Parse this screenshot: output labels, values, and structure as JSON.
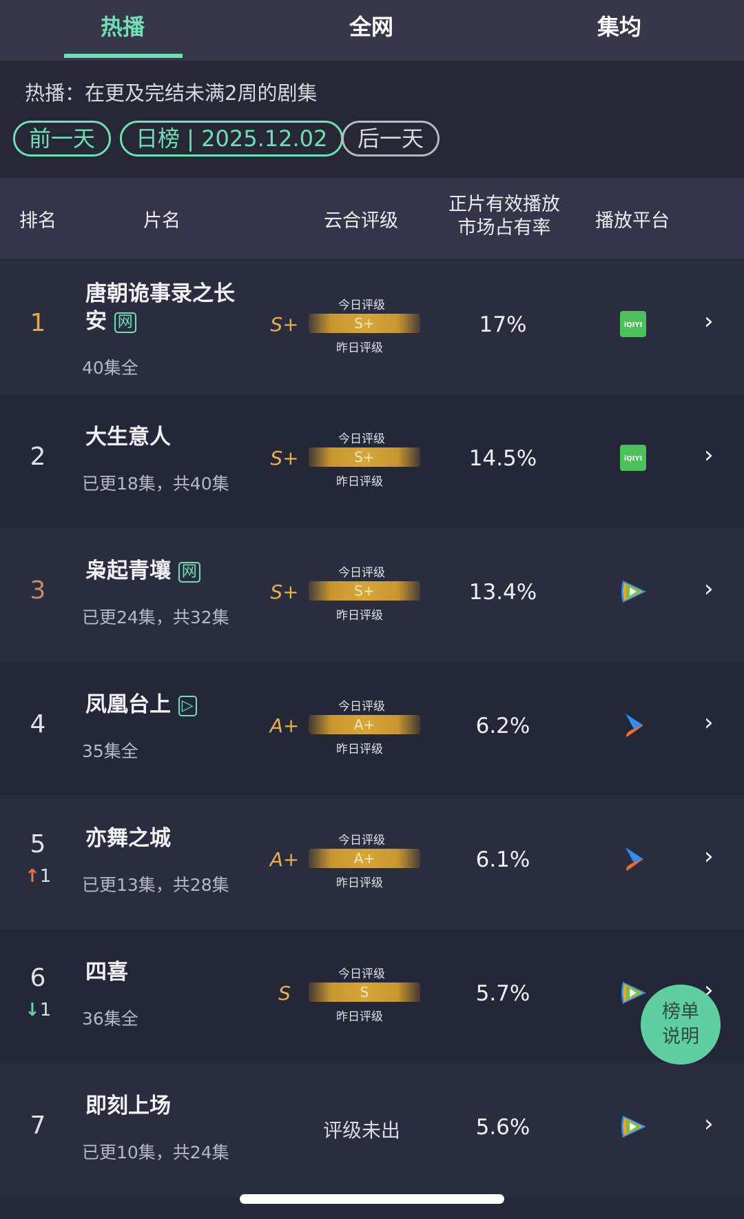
{
  "tabs": [
    {
      "label": "热播",
      "active": true
    },
    {
      "label": "全网",
      "active": false
    },
    {
      "label": "集均",
      "active": false
    }
  ],
  "description": "热播：在更及完结未满2周的剧集",
  "date_nav": {
    "prev": "前一天",
    "current": "日榜 | 2025.12.02",
    "next": "后一天"
  },
  "table_headers": {
    "rank": "排名",
    "title": "片名",
    "grade": "云合评级",
    "share": "正片有效播放\n市场占有率",
    "share_line1": "正片有效播放",
    "share_line2": "市场占有率",
    "platform": "播放平台"
  },
  "grade_labels": {
    "today": "今日评级",
    "yesterday": "昨日评级"
  },
  "rows": [
    {
      "rank": "1",
      "title": "唐朝诡事录之长安",
      "badge": "网",
      "status": "40集全",
      "grade": "S+",
      "bar_grade": "S+",
      "share": "17%",
      "platform": "iqiyi-icon",
      "change": ""
    },
    {
      "rank": "2",
      "title": "大生意人",
      "badge": "",
      "status": "已更18集，共40集",
      "grade": "S+",
      "bar_grade": "S+",
      "share": "14.5%",
      "platform": "iqiyi-icon",
      "change": ""
    },
    {
      "rank": "3",
      "title": "枭起青壤",
      "badge": "网",
      "status": "已更24集，共32集",
      "grade": "S+",
      "bar_grade": "S+",
      "share": "13.4%",
      "platform": "tencent-video-icon",
      "change": ""
    },
    {
      "rank": "4",
      "title": "凤凰台上",
      "badge": "▷",
      "status": "35集全",
      "grade": "A+",
      "bar_grade": "A+",
      "share": "6.2%",
      "platform": "youku-icon",
      "change": ""
    },
    {
      "rank": "5",
      "title": "亦舞之城",
      "badge": "",
      "status": "已更13集，共28集",
      "grade": "A+",
      "bar_grade": "A+",
      "share": "6.1%",
      "platform": "youku-icon",
      "change": "1",
      "direction": "up"
    },
    {
      "rank": "6",
      "title": "四喜",
      "badge": "",
      "status": "36集全",
      "grade": "S",
      "bar_grade": "S",
      "share": "5.7%",
      "platform": "tencent-video-icon",
      "change": "1",
      "direction": "down"
    },
    {
      "rank": "7",
      "title": "即刻上场",
      "badge": "",
      "status": "已更10集，共24集",
      "grade": "",
      "no_grade": "评级未出",
      "share": "5.6%",
      "platform": "tencent-video-icon",
      "change": ""
    }
  ],
  "fab": {
    "line1": "榜单",
    "line2": "说明"
  },
  "iqiyi_text": "iQIYI",
  "colors": {
    "accent": "#6ee0b8",
    "gold": "#e6b04d",
    "up": "#ef6f3c",
    "down": "#5ed6a8",
    "iqiyi": "#4cc15a"
  }
}
